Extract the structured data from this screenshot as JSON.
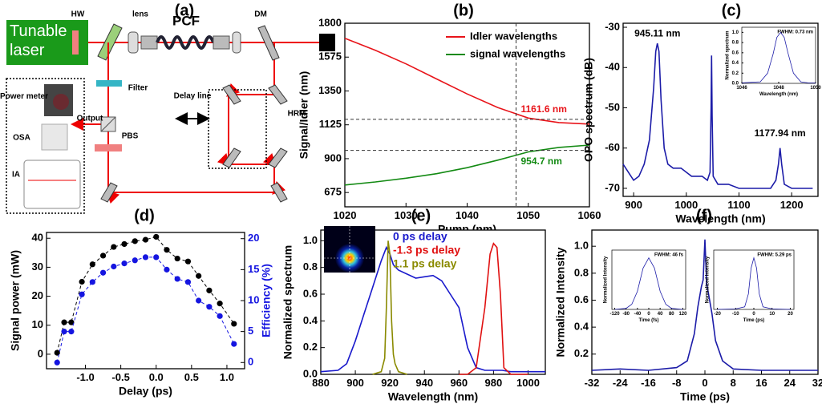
{
  "diagram": {
    "title": "(a)",
    "laser": "Tunable laser",
    "hw": "HW",
    "lens": "lens",
    "pcf": "PCF",
    "dm": "DM",
    "filter": "Filter",
    "output": "Output",
    "pbs": "PBS",
    "power_meter": "Power meter",
    "osa": "OSA",
    "ia": "IA",
    "delay_line": "Delay line",
    "hrm": "HRM"
  },
  "chart_data": [
    {
      "type": "line",
      "title": "(b)",
      "xlabel": "Pump (nm)",
      "ylabel": "Signal/Idler (nm)",
      "xlim": [
        1020,
        1060
      ],
      "xticks": [
        1020,
        1030,
        1040,
        1050,
        1060
      ],
      "ylim": [
        580,
        1800
      ],
      "yticks": [
        675,
        900,
        1125,
        1350,
        1575,
        1800
      ],
      "series": [
        {
          "name": "Idler wavelengths",
          "color": "#e8141a",
          "x": [
            1020,
            1025,
            1030,
            1035,
            1040,
            1045,
            1050,
            1055,
            1060
          ],
          "values": [
            1700,
            1620,
            1530,
            1430,
            1330,
            1240,
            1170,
            1140,
            1130
          ]
        },
        {
          "name": "signal wavelengths",
          "color": "#138a13",
          "x": [
            1020,
            1025,
            1030,
            1035,
            1040,
            1045,
            1050,
            1055,
            1060
          ],
          "values": [
            725,
            745,
            770,
            800,
            840,
            890,
            945,
            975,
            990
          ]
        }
      ],
      "annotations": [
        {
          "text": "1161.6 nm",
          "x": 1048,
          "y": 1161.6,
          "color": "#e8141a"
        },
        {
          "text": "954.7 nm",
          "x": 1048,
          "y": 954.7,
          "color": "#138a13"
        }
      ],
      "guides": true,
      "legend": "upper right"
    },
    {
      "type": "line",
      "title": "(c)",
      "xlabel": "Wavelength (nm)",
      "ylabel": "OPO spectrum (dB)",
      "xlim": [
        880,
        1250
      ],
      "xticks": [
        900,
        1000,
        1100,
        1200
      ],
      "ylim": [
        -72,
        -29
      ],
      "yticks": [
        -30,
        -40,
        -50,
        -60,
        -70
      ],
      "series": [
        {
          "color": "#1c1ca8",
          "x": [
            880,
            890,
            900,
            910,
            920,
            930,
            938,
            942,
            945,
            948,
            952,
            958,
            965,
            975,
            990,
            1000,
            1010,
            1020,
            1030,
            1040,
            1045,
            1047,
            1048,
            1049,
            1051,
            1060,
            1080,
            1100,
            1120,
            1140,
            1160,
            1170,
            1175,
            1178,
            1181,
            1186,
            1200,
            1220,
            1240
          ],
          "values": [
            -64,
            -66,
            -68,
            -67,
            -64,
            -58,
            -45,
            -36,
            -34,
            -36,
            -48,
            -60,
            -64,
            -65,
            -65,
            -66,
            -67,
            -67,
            -67,
            -68,
            -66,
            -50,
            -37,
            -52,
            -67,
            -69,
            -69,
            -70,
            -70,
            -70,
            -70,
            -68,
            -64,
            -60,
            -64,
            -69,
            -70,
            -70,
            -70
          ]
        }
      ],
      "annotations": [
        {
          "text": "945.11 nm",
          "x": 945.11,
          "y": -34,
          "color": "#000000"
        },
        {
          "text": "1177.94 nm",
          "x": 1177.94,
          "y": -60,
          "color": "#000000"
        }
      ]
    },
    {
      "type": "line",
      "xlabel": "Wavelength (nm)",
      "ylabel": "Normalized spectrum",
      "note": "FWHM: 0.73 nm",
      "xlim": [
        1046,
        1050
      ],
      "xticks": [
        1046,
        1048,
        1050
      ],
      "ylim": [
        0,
        1.1
      ],
      "yticks": [
        {
          "value": 0,
          "label": "0.0"
        },
        0.2,
        0.4,
        0.6,
        0.8,
        {
          "value": 1,
          "label": "1.0"
        }
      ],
      "series": [
        {
          "color": "#1c1ca8",
          "x": [
            1046,
            1046.5,
            1047,
            1047.4,
            1047.7,
            1047.9,
            1048.1,
            1048.3,
            1048.5,
            1048.8,
            1049.2,
            1049.6,
            1050
          ],
          "values": [
            0.01,
            0.02,
            0.03,
            0.2,
            0.58,
            0.9,
            1.0,
            0.9,
            0.6,
            0.2,
            0.03,
            0.01,
            0.01
          ]
        }
      ]
    },
    {
      "type": "line",
      "title": "(d)",
      "xlabel": "Delay (ps)",
      "ylabel": "Signal power (mW)",
      "y2label": "Efficiency (%)",
      "xlim": [
        -1.55,
        1.25
      ],
      "xticks": [
        {
          "value": -1,
          "label": "-1.0"
        },
        -0.5,
        {
          "value": 0,
          "label": "0.0"
        },
        0.5,
        {
          "value": 1,
          "label": "1.0"
        }
      ],
      "ylim": [
        -5,
        42
      ],
      "yticks": [
        0,
        10,
        20,
        30,
        40
      ],
      "y2lim": [
        -1,
        21
      ],
      "y2ticks": [
        0,
        5,
        10,
        15,
        20
      ],
      "markers": true,
      "dashed": true,
      "series": [
        {
          "name": "Signal power",
          "color": "#000000",
          "x": [
            -1.4,
            -1.3,
            -1.2,
            -1.05,
            -0.9,
            -0.75,
            -0.6,
            -0.45,
            -0.3,
            -0.15,
            0,
            0.15,
            0.3,
            0.45,
            0.6,
            0.75,
            0.9,
            1.1
          ],
          "values": [
            0.5,
            11,
            11,
            25,
            31,
            34,
            37,
            38,
            39,
            39.5,
            40.5,
            36,
            33,
            32,
            27,
            22,
            17.5,
            10.5
          ]
        },
        {
          "name": "Efficiency",
          "color": "#1515e0",
          "axis": "y2",
          "x": [
            -1.4,
            -1.3,
            -1.2,
            -1.05,
            -0.9,
            -0.75,
            -0.6,
            -0.45,
            -0.3,
            -0.15,
            0,
            0.15,
            0.3,
            0.45,
            0.6,
            0.75,
            0.9,
            1.1
          ],
          "values": [
            0,
            5,
            5,
            11,
            13,
            14.5,
            15.5,
            16,
            16.5,
            17,
            17,
            15,
            13.5,
            13,
            10,
            9,
            7.5,
            3
          ]
        }
      ]
    },
    {
      "type": "line",
      "title": "(e)",
      "xlabel": "Wavelength (nm)",
      "ylabel": "Normalized spectrum",
      "xlim": [
        880,
        1010
      ],
      "xticks": [
        880,
        900,
        920,
        940,
        960,
        980,
        1000
      ],
      "ylim": [
        0,
        1.08
      ],
      "yticks": [
        {
          "value": 0,
          "label": "0.0"
        },
        0.2,
        0.4,
        0.6,
        0.8,
        {
          "value": 1,
          "label": "1.0"
        }
      ],
      "series": [
        {
          "name": "0 ps delay",
          "color": "#1a1acc",
          "x": [
            880,
            890,
            895,
            900,
            905,
            910,
            915,
            918,
            920,
            922,
            925,
            930,
            935,
            940,
            945,
            950,
            955,
            960,
            965,
            970,
            975,
            980,
            985,
            990,
            1000,
            1010
          ],
          "values": [
            0.02,
            0.03,
            0.08,
            0.25,
            0.45,
            0.65,
            0.85,
            0.95,
            0.9,
            0.82,
            0.78,
            0.75,
            0.72,
            0.73,
            0.74,
            0.7,
            0.6,
            0.5,
            0.2,
            0.05,
            0.03,
            0.03,
            0.03,
            0.02,
            0.02,
            0.02
          ]
        },
        {
          "name": "-1.3 ps delay",
          "color": "#e01010",
          "x": [
            960,
            965,
            970,
            975,
            978,
            980,
            982,
            984,
            986,
            990,
            1000
          ],
          "values": [
            0,
            0,
            0.05,
            0.5,
            0.9,
            0.98,
            0.95,
            0.6,
            0.05,
            0,
            0
          ]
        },
        {
          "name": "1.1 ps delay",
          "color": "#8a8a00",
          "x": [
            910,
            915,
            917,
            918,
            919,
            920,
            921,
            922,
            923,
            925,
            930
          ],
          "values": [
            0,
            0.02,
            0.12,
            0.5,
            1.0,
            0.9,
            0.4,
            0.15,
            0.08,
            0.02,
            0
          ]
        }
      ],
      "legend": "upper center"
    },
    {
      "type": "line",
      "title": "(f)",
      "xlabel": "Time (ps)",
      "ylabel": "Normalized Intensity",
      "xlim": [
        -32,
        32
      ],
      "xticks": [
        -32,
        -24,
        -16,
        -8,
        0,
        8,
        16,
        24,
        32
      ],
      "ylim": [
        0.05,
        1.12
      ],
      "yticks": [
        0.2,
        0.4,
        0.6,
        0.8,
        {
          "value": 1,
          "label": "1.0"
        }
      ],
      "series": [
        {
          "color": "#1c1ca8",
          "x": [
            -32,
            -24,
            -16,
            -8,
            -5,
            -3,
            -2,
            -1,
            -0.5,
            0,
            0.5,
            1,
            2,
            3,
            5,
            8,
            16,
            24,
            32
          ],
          "values": [
            0.08,
            0.09,
            0.08,
            0.1,
            0.15,
            0.35,
            0.55,
            0.7,
            0.75,
            1.05,
            0.72,
            0.65,
            0.5,
            0.3,
            0.15,
            0.09,
            0.08,
            0.08,
            0.08
          ]
        }
      ]
    },
    {
      "type": "line",
      "xlabel": "Time (fs)",
      "ylabel": "Normalized Intensity",
      "note": "FWHM: 46 fs",
      "xlim": [
        -130,
        130
      ],
      "xticks": [
        -120,
        -80,
        -40,
        0,
        40,
        80,
        120
      ],
      "ylim": [
        0,
        1.15
      ],
      "series": [
        {
          "color": "#1c1ca8",
          "x": [
            -120,
            -80,
            -60,
            -40,
            -20,
            0,
            20,
            40,
            60,
            80,
            120
          ],
          "values": [
            0,
            0.02,
            0.1,
            0.35,
            0.8,
            1.0,
            0.8,
            0.35,
            0.1,
            0.02,
            0
          ]
        }
      ]
    },
    {
      "type": "line",
      "xlabel": "Time (ps)",
      "ylabel": "Normalized Intensity",
      "note": "FWHM: 5.29 ps",
      "xlim": [
        -22,
        22
      ],
      "xticks": [
        -20,
        -10,
        0,
        10,
        20
      ],
      "ylim": [
        0,
        1.15
      ],
      "series": [
        {
          "color": "#1c1ca8",
          "x": [
            -20,
            -10,
            -5,
            -3,
            -1.5,
            0,
            1.5,
            3,
            5,
            10,
            20
          ],
          "values": [
            0,
            0.01,
            0.05,
            0.3,
            0.8,
            1.0,
            0.8,
            0.3,
            0.05,
            0.01,
            0
          ]
        }
      ]
    }
  ]
}
